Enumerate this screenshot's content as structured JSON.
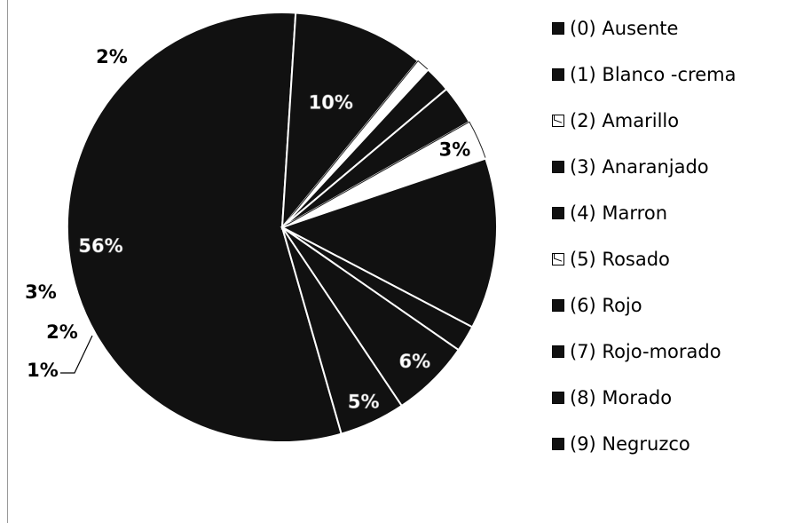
{
  "chart_data": {
    "type": "pie",
    "title": "",
    "slices": [
      {
        "label": "(0) Ausente",
        "value": 56,
        "pct_label": "56%",
        "fill": "#111111",
        "text_color": "#ffffff"
      },
      {
        "label": "(1) Blanco -crema",
        "value": 10,
        "pct_label": "10%",
        "fill": "#111111",
        "text_color": "#ffffff"
      },
      {
        "label": "(2) Amarillo",
        "value": 1,
        "pct_label": "1%",
        "fill": "#ffffff",
        "text_color": "#000000"
      },
      {
        "label": "(3) Anaranjado",
        "value": 2,
        "pct_label": "2%",
        "fill": "#111111",
        "text_color": "#000000"
      },
      {
        "label": "(4) Marron",
        "value": 3,
        "pct_label": "3%",
        "fill": "#111111",
        "text_color": "#000000"
      },
      {
        "label": "(5) Rosado",
        "value": 3,
        "pct_label": "3%",
        "fill": "#ffffff",
        "text_color": "#000000"
      },
      {
        "label": "(6) Rojo",
        "value": 13,
        "pct_label": "",
        "fill": "#111111",
        "text_color": "#ffffff"
      },
      {
        "label": "(7) Rojo-morado",
        "value": 2,
        "pct_label": "2%",
        "fill": "#111111",
        "text_color": "#000000"
      },
      {
        "label": "(8) Morado",
        "value": 6,
        "pct_label": "6%",
        "fill": "#111111",
        "text_color": "#ffffff"
      },
      {
        "label": "(9) Negruzco",
        "value": 5,
        "pct_label": "5%",
        "fill": "#111111",
        "text_color": "#ffffff"
      }
    ],
    "legend_position": "right"
  },
  "legend": {
    "items": [
      {
        "label": "(0) Ausente",
        "swatch": "dark"
      },
      {
        "label": "(1) Blanco -crema",
        "swatch": "dark"
      },
      {
        "label": "(2) Amarillo",
        "swatch": "light"
      },
      {
        "label": "(3) Anaranjado",
        "swatch": "dark"
      },
      {
        "label": "(4) Marron",
        "swatch": "dark"
      },
      {
        "label": "(5) Rosado",
        "swatch": "light"
      },
      {
        "label": "(6) Rojo",
        "swatch": "dark"
      },
      {
        "label": "(7) Rojo-morado",
        "swatch": "dark"
      },
      {
        "label": "(8) Morado",
        "swatch": "dark"
      },
      {
        "label": "(9) Negruzco",
        "swatch": "dark"
      }
    ]
  }
}
